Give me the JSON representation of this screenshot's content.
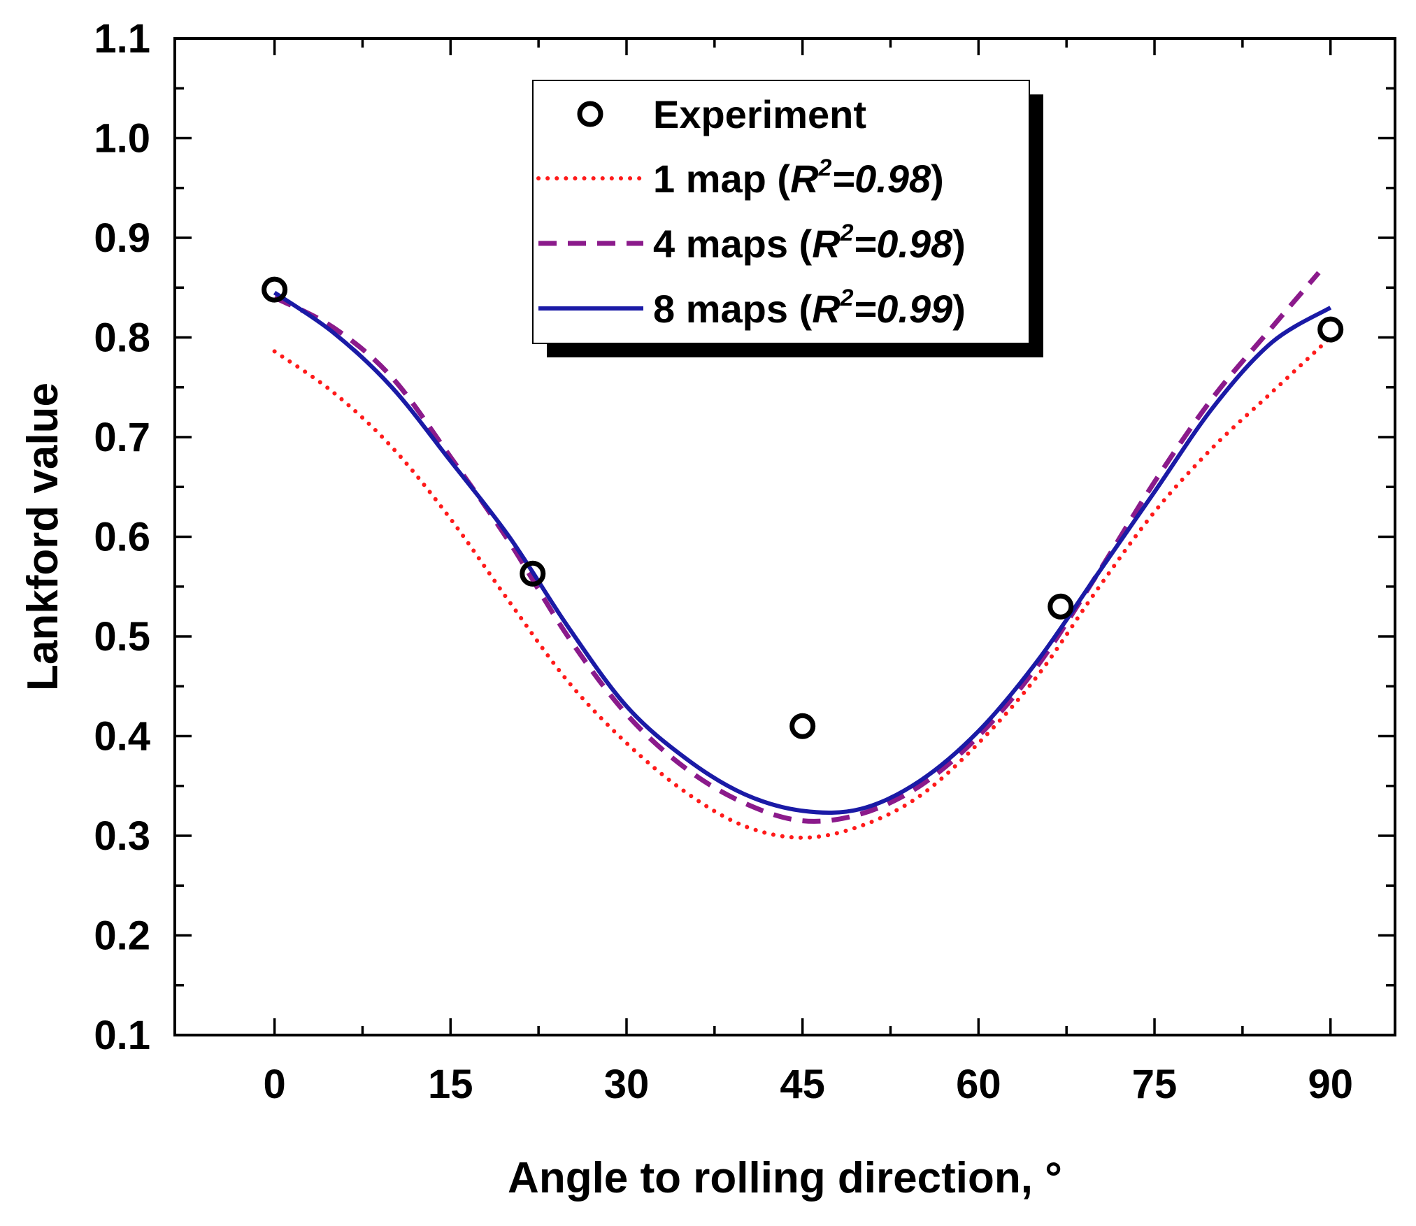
{
  "chart_data": {
    "type": "line",
    "title": "",
    "xlabel": "Angle to rolling direction, °",
    "ylabel": "Lankford value",
    "xlim": [
      -8.5,
      95.5
    ],
    "ylim": [
      0.1,
      1.1
    ],
    "xticks": [
      0,
      15,
      30,
      45,
      60,
      75,
      90
    ],
    "xtick_labels": [
      "0",
      "15",
      "30",
      "45",
      "60",
      "75",
      "90"
    ],
    "yticks": [
      0.1,
      0.2,
      0.3,
      0.4,
      0.5,
      0.6,
      0.7,
      0.8,
      0.9,
      1.0,
      1.1
    ],
    "ytick_labels": [
      "0.1",
      "0.2",
      "0.3",
      "0.4",
      "0.5",
      "0.6",
      "0.7",
      "0.8",
      "0.9",
      "1.0",
      "1.1"
    ],
    "grid": false,
    "legend_position": "top-center",
    "series": [
      {
        "name": "Experiment",
        "label_main": "Experiment",
        "label_r2": "",
        "style": "markers",
        "color": "#000000",
        "x": [
          0,
          22,
          45,
          67,
          90
        ],
        "y": [
          0.848,
          0.563,
          0.41,
          0.53,
          0.808
        ]
      },
      {
        "name": "1 map (R2=0.98)",
        "label_main": "1 map (",
        "label_r2": "0.98",
        "style": "dotted",
        "color": "#ff1a1a",
        "x": [
          0,
          5,
          10,
          15,
          20,
          25,
          30,
          35,
          40,
          45,
          50,
          55,
          60,
          65,
          70,
          75,
          80,
          85,
          90
        ],
        "y": [
          0.786,
          0.745,
          0.69,
          0.618,
          0.535,
          0.455,
          0.393,
          0.344,
          0.31,
          0.298,
          0.31,
          0.34,
          0.393,
          0.46,
          0.545,
          0.625,
          0.69,
          0.745,
          0.8
        ]
      },
      {
        "name": "4 maps (R2=0.98)",
        "label_main": "4 maps (",
        "label_r2": "0.98",
        "style": "dashed",
        "color": "#8b1a8b",
        "x": [
          0,
          5,
          10,
          15,
          20,
          25,
          30,
          35,
          40,
          45,
          50,
          55,
          60,
          65,
          70,
          75,
          80,
          85,
          89
        ],
        "y": [
          0.84,
          0.81,
          0.76,
          0.68,
          0.595,
          0.5,
          0.422,
          0.368,
          0.333,
          0.315,
          0.322,
          0.35,
          0.4,
          0.47,
          0.56,
          0.655,
          0.74,
          0.81,
          0.865
        ]
      },
      {
        "name": "8 maps (R2=0.99)",
        "label_main": "8 maps (",
        "label_r2": "0.99",
        "style": "solid",
        "color": "#1a1aa6",
        "x": [
          0,
          5,
          10,
          15,
          20,
          25,
          30,
          35,
          40,
          45,
          50,
          55,
          60,
          65,
          70,
          75,
          80,
          85,
          90
        ],
        "y": [
          0.845,
          0.805,
          0.75,
          0.676,
          0.6,
          0.51,
          0.43,
          0.378,
          0.342,
          0.325,
          0.327,
          0.355,
          0.405,
          0.475,
          0.56,
          0.645,
          0.73,
          0.795,
          0.83
        ]
      }
    ]
  }
}
